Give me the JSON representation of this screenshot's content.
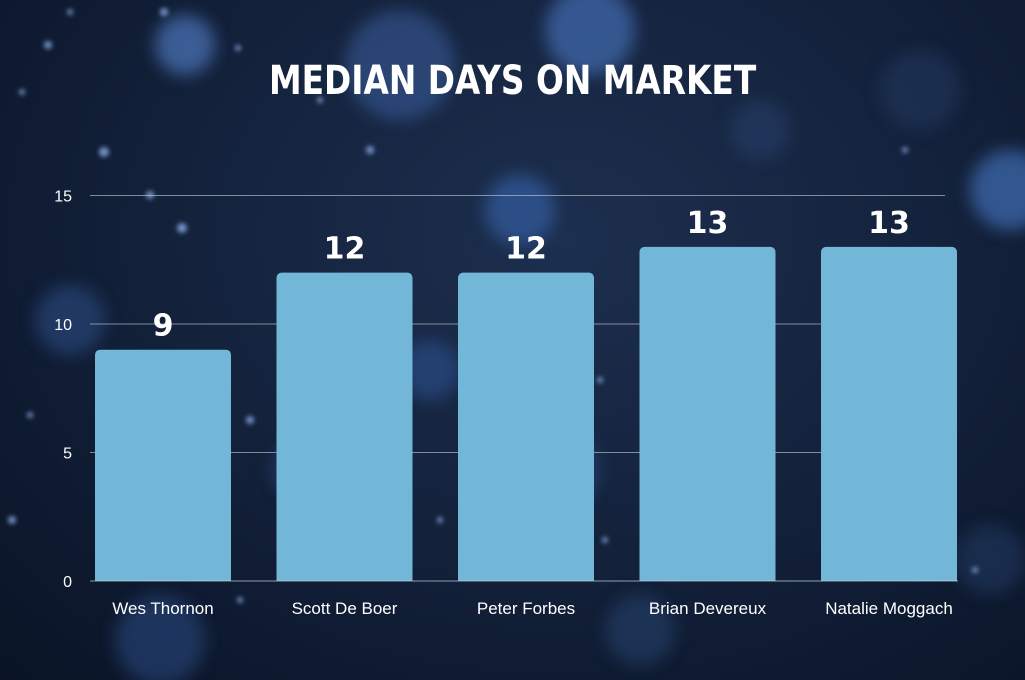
{
  "chart_data": {
    "type": "bar",
    "title": "MEDIAN DAYS ON MARKET",
    "categories": [
      "Wes Thornon",
      "Scott De Boer",
      "Peter Forbes",
      "Brian Devereux",
      "Natalie Moggach"
    ],
    "values": [
      9,
      12,
      12,
      13,
      13
    ],
    "data_labels": [
      "9",
      "12",
      "12",
      "13",
      "13"
    ],
    "y_ticks": [
      "0",
      "5",
      "10",
      "15"
    ],
    "ylim": [
      0,
      16
    ],
    "grid": true,
    "colors": {
      "bar": "#72b7d8",
      "text": "#ffffff",
      "grid": "#c8d2dc"
    }
  }
}
